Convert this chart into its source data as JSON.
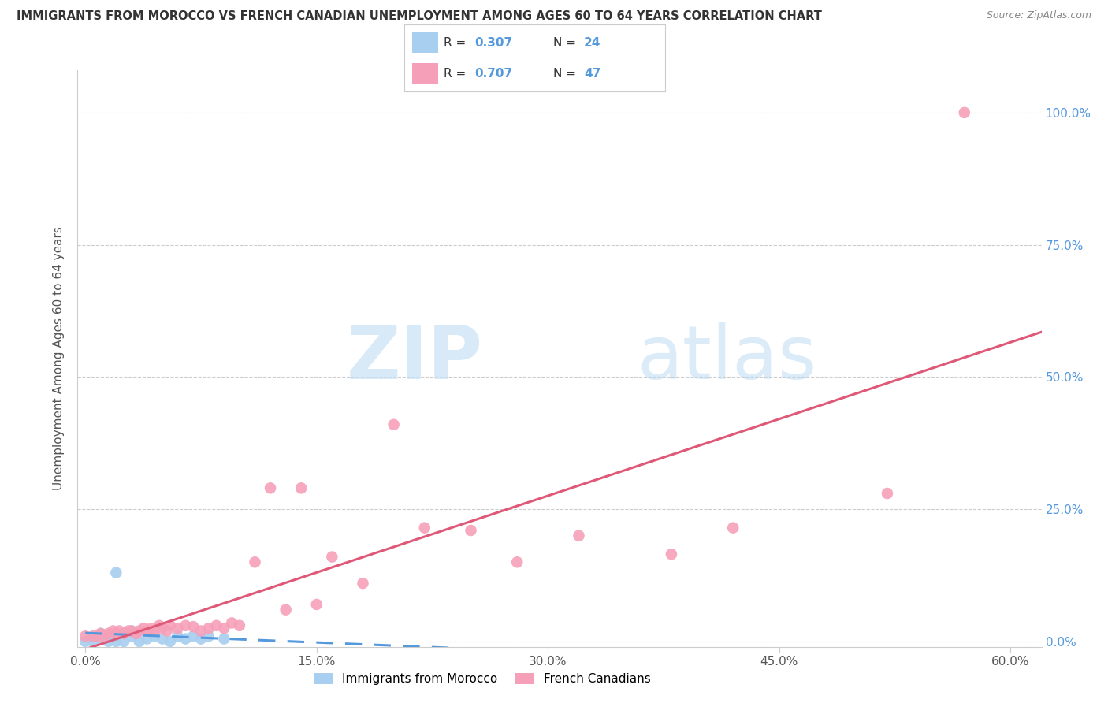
{
  "title": "IMMIGRANTS FROM MOROCCO VS FRENCH CANADIAN UNEMPLOYMENT AMONG AGES 60 TO 64 YEARS CORRELATION CHART",
  "source": "Source: ZipAtlas.com",
  "ylabel": "Unemployment Among Ages 60 to 64 years",
  "x_tick_labels": [
    "0.0%",
    "15.0%",
    "30.0%",
    "45.0%",
    "60.0%"
  ],
  "x_tick_values": [
    0.0,
    0.15,
    0.3,
    0.45,
    0.6
  ],
  "y_tick_labels": [
    "0.0%",
    "25.0%",
    "50.0%",
    "75.0%",
    "100.0%"
  ],
  "y_tick_values": [
    0.0,
    0.25,
    0.5,
    0.75,
    1.0
  ],
  "xlim": [
    -0.005,
    0.62
  ],
  "ylim": [
    -0.01,
    1.08
  ],
  "r_morocco": 0.307,
  "n_morocco": 24,
  "r_french": 0.707,
  "n_french": 47,
  "morocco_color": "#a8cef0",
  "french_color": "#f5a0b8",
  "morocco_line_color": "#5599dd",
  "french_line_color": "#e05878",
  "watermark_zip": "ZIP",
  "watermark_atlas": "atlas",
  "legend_label_morocco": "Immigrants from Morocco",
  "legend_label_french": "French Canadians",
  "morocco_x": [
    0.0,
    0.005,
    0.01,
    0.01,
    0.015,
    0.015,
    0.02,
    0.02,
    0.02,
    0.025,
    0.025,
    0.03,
    0.03,
    0.035,
    0.04,
    0.045,
    0.05,
    0.055,
    0.06,
    0.065,
    0.07,
    0.075,
    0.08,
    0.09
  ],
  "morocco_y": [
    0.0,
    0.0,
    0.005,
    0.015,
    0.0,
    0.01,
    0.0,
    0.01,
    0.13,
    0.0,
    0.015,
    0.01,
    0.02,
    0.0,
    0.005,
    0.01,
    0.005,
    0.0,
    0.01,
    0.005,
    0.01,
    0.005,
    0.01,
    0.005
  ],
  "french_x": [
    0.0,
    0.005,
    0.008,
    0.01,
    0.012,
    0.015,
    0.018,
    0.02,
    0.022,
    0.025,
    0.028,
    0.03,
    0.033,
    0.035,
    0.038,
    0.04,
    0.043,
    0.045,
    0.048,
    0.05,
    0.053,
    0.055,
    0.06,
    0.065,
    0.07,
    0.075,
    0.08,
    0.085,
    0.09,
    0.095,
    0.1,
    0.11,
    0.12,
    0.13,
    0.14,
    0.15,
    0.16,
    0.18,
    0.2,
    0.22,
    0.25,
    0.28,
    0.32,
    0.38,
    0.42,
    0.52,
    0.57
  ],
  "french_y": [
    0.01,
    0.01,
    0.01,
    0.015,
    0.01,
    0.015,
    0.02,
    0.015,
    0.02,
    0.015,
    0.02,
    0.02,
    0.015,
    0.02,
    0.025,
    0.02,
    0.025,
    0.02,
    0.03,
    0.025,
    0.02,
    0.03,
    0.025,
    0.03,
    0.028,
    0.02,
    0.025,
    0.03,
    0.025,
    0.035,
    0.03,
    0.15,
    0.29,
    0.06,
    0.29,
    0.07,
    0.16,
    0.11,
    0.41,
    0.215,
    0.21,
    0.15,
    0.2,
    0.165,
    0.215,
    0.28,
    1.0
  ]
}
